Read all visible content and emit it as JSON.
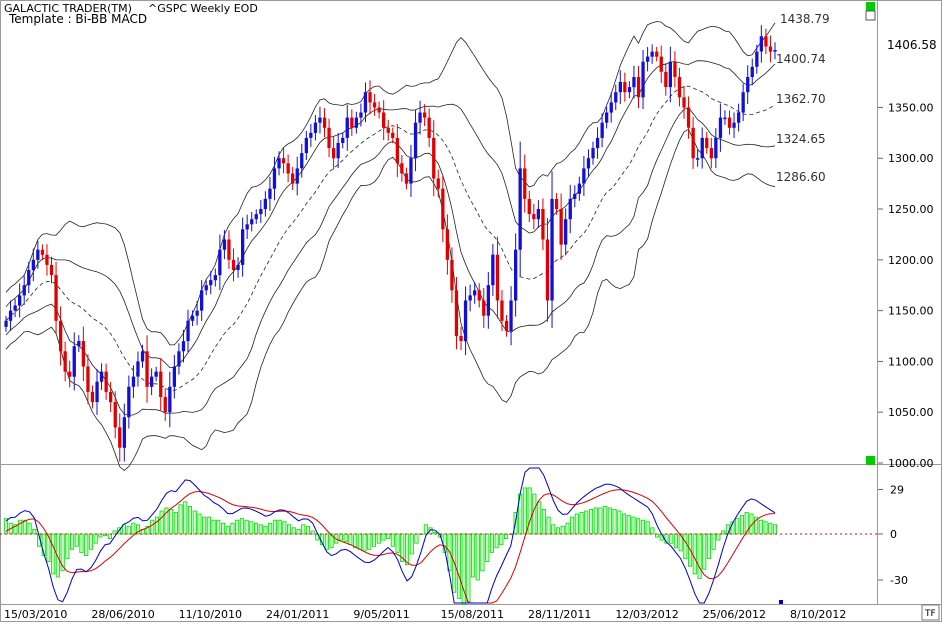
{
  "header": {
    "app_title": "GALACTIC TRADER(TM)",
    "symbol": "^GSPC Weekly EOD",
    "template": "Template : Bi-BB MACD"
  },
  "colors": {
    "up": "#1010d8",
    "down": "#e00000",
    "histogram": "#00dd00",
    "histogram_fill": "#c8ffc8",
    "signal": "#dd0000",
    "macd": "#0000cc",
    "band": "#222222",
    "grid_marker": "#00cc00"
  },
  "chart_data": [
    {
      "type": "candlestick",
      "title": "",
      "ylim": [
        1000,
        1440
      ],
      "y_ticks": [
        1000,
        1050,
        1100,
        1150,
        1200,
        1250,
        1300,
        1350
      ],
      "x_ticks": [
        "15/03/2010",
        "28/06/2010",
        "11/10/2010",
        "24/01/2011",
        "9/05/2011",
        "15/08/2011",
        "28/11/2011",
        "12/03/2012",
        "25/06/2012",
        "8/10/2012"
      ],
      "last_price": "1406.58",
      "band_labels": [
        "1438.79",
        "1400.74",
        "1362.70",
        "1324.65",
        "1286.60"
      ],
      "closes": [
        1140,
        1150,
        1155,
        1165,
        1175,
        1190,
        1200,
        1210,
        1205,
        1195,
        1185,
        1140,
        1110,
        1090,
        1085,
        1115,
        1120,
        1095,
        1070,
        1060,
        1080,
        1090,
        1070,
        1060,
        1035,
        1015,
        1045,
        1075,
        1085,
        1100,
        1110,
        1075,
        1085,
        1090,
        1065,
        1050,
        1075,
        1095,
        1110,
        1120,
        1140,
        1145,
        1150,
        1170,
        1175,
        1180,
        1185,
        1210,
        1220,
        1200,
        1190,
        1195,
        1230,
        1235,
        1240,
        1245,
        1250,
        1260,
        1270,
        1290,
        1300,
        1295,
        1285,
        1275,
        1290,
        1305,
        1320,
        1325,
        1335,
        1340,
        1330,
        1310,
        1300,
        1315,
        1320,
        1340,
        1330,
        1340,
        1345,
        1365,
        1355,
        1350,
        1345,
        1330,
        1325,
        1320,
        1295,
        1285,
        1275,
        1300,
        1335,
        1345,
        1340,
        1320,
        1280,
        1270,
        1230,
        1200,
        1170,
        1125,
        1120,
        1160,
        1165,
        1170,
        1160,
        1145,
        1175,
        1205,
        1160,
        1140,
        1130,
        1160,
        1210,
        1290,
        1260,
        1245,
        1240,
        1250,
        1220,
        1160,
        1260,
        1250,
        1215,
        1240,
        1260,
        1265,
        1275,
        1290,
        1300,
        1310,
        1320,
        1335,
        1345,
        1355,
        1365,
        1375,
        1365,
        1370,
        1380,
        1360,
        1395,
        1400,
        1405,
        1400,
        1385,
        1370,
        1395,
        1380,
        1360,
        1350,
        1330,
        1300,
        1300,
        1320,
        1310,
        1300,
        1320,
        1340,
        1340,
        1330,
        1335,
        1345,
        1365,
        1380,
        1390,
        1405,
        1420,
        1410,
        1405,
        1406.58
      ]
    },
    {
      "type": "macd",
      "title": "",
      "ylim": [
        -45,
        43
      ],
      "y_ticks": [
        29,
        0,
        -30
      ],
      "histogram": [
        10,
        7,
        6,
        9,
        9,
        7,
        3,
        -8,
        -14,
        -18,
        -26,
        -28,
        -24,
        -16,
        -10,
        -8,
        -12,
        -14,
        -10,
        -6,
        -2,
        -1,
        -3,
        2,
        4,
        6,
        5,
        7,
        6,
        3,
        5,
        9,
        11,
        15,
        17,
        16,
        14,
        19,
        21,
        18,
        15,
        13,
        11,
        11,
        9,
        9,
        7,
        5,
        7,
        9,
        10,
        9,
        8,
        7,
        6,
        5,
        7,
        9,
        9,
        8,
        6,
        4,
        3,
        6,
        5,
        2,
        -4,
        -7,
        -10,
        -9,
        -6,
        -4,
        -5,
        -7,
        -9,
        -10,
        -11,
        -10,
        -8,
        -6,
        -4,
        -3,
        -8,
        -12,
        -18,
        -20,
        -13,
        -6,
        0,
        6,
        4,
        1,
        -2,
        -12,
        -24,
        -38,
        -42,
        -46,
        -44,
        -28,
        -30,
        -24,
        -18,
        -12,
        -9,
        -7,
        -3,
        0,
        14,
        26,
        30,
        30,
        26,
        21,
        16,
        11,
        6,
        4,
        5,
        7,
        11,
        13,
        14,
        15,
        16,
        17,
        17,
        18,
        17,
        16,
        15,
        13,
        12,
        11,
        10,
        9,
        8,
        4,
        -2,
        -4,
        -6,
        -6,
        -9,
        -11,
        -16,
        -21,
        -26,
        -29,
        -23,
        -16,
        -10,
        -4,
        2,
        6,
        8,
        10,
        12,
        14,
        13,
        11,
        9,
        8,
        7,
        6
      ]
    }
  ]
}
